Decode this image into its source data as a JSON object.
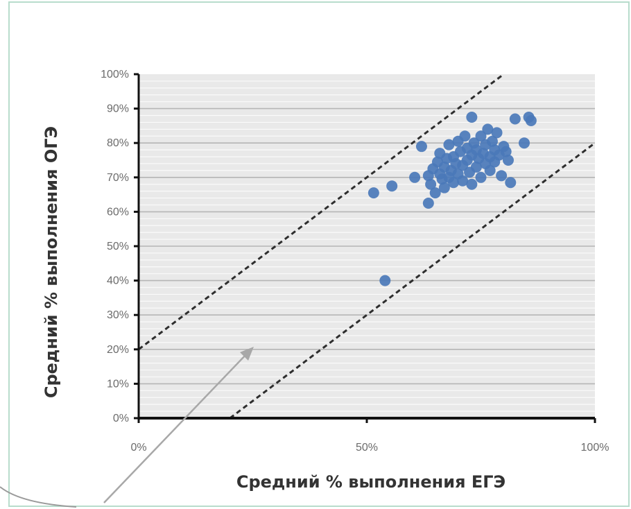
{
  "chart_data": {
    "type": "scatter",
    "title": "",
    "xlabel": "Средний % выполнения ЕГЭ",
    "ylabel": "Средний % выполнения ОГЭ",
    "xlim": [
      0,
      100
    ],
    "ylim": [
      0,
      100
    ],
    "x_ticks": [
      "0%",
      "50%",
      "100%"
    ],
    "y_ticks": [
      "0%",
      "10%",
      "20%",
      "30%",
      "40%",
      "50%",
      "60%",
      "70%",
      "80%",
      "90%",
      "100%"
    ],
    "grid": "horizontal",
    "legend": "none",
    "series": [
      {
        "color": "#4a78b8",
        "points": [
          [
            51.5,
            65.5
          ],
          [
            55.5,
            67.5
          ],
          [
            60.5,
            70
          ],
          [
            62,
            79
          ],
          [
            63.5,
            62.5
          ],
          [
            63.5,
            70.5
          ],
          [
            64,
            68
          ],
          [
            64.5,
            72.5
          ],
          [
            65,
            65.5
          ],
          [
            65.5,
            74.5
          ],
          [
            66,
            71
          ],
          [
            66,
            77
          ],
          [
            66.5,
            69.5
          ],
          [
            67,
            73
          ],
          [
            67,
            67
          ],
          [
            67.5,
            75.5
          ],
          [
            68,
            70
          ],
          [
            68,
            79.5
          ],
          [
            68.5,
            72
          ],
          [
            69,
            76
          ],
          [
            69,
            68.5
          ],
          [
            69.5,
            74
          ],
          [
            70,
            80.5
          ],
          [
            70,
            71
          ],
          [
            70.5,
            77.5
          ],
          [
            71,
            73.5
          ],
          [
            71,
            69
          ],
          [
            71.5,
            82
          ],
          [
            72,
            75
          ],
          [
            72,
            78.5
          ],
          [
            72.5,
            71.5
          ],
          [
            73,
            87.5
          ],
          [
            73,
            76.5
          ],
          [
            73,
            68
          ],
          [
            73.5,
            80
          ],
          [
            74,
            73
          ],
          [
            74,
            78
          ],
          [
            74.5,
            75.5
          ],
          [
            75,
            82
          ],
          [
            75,
            70
          ],
          [
            75.5,
            77
          ],
          [
            76,
            74
          ],
          [
            76,
            79.5
          ],
          [
            76.5,
            84
          ],
          [
            77,
            76
          ],
          [
            77,
            72
          ],
          [
            77.5,
            80.5
          ],
          [
            78,
            78
          ],
          [
            78,
            74.5
          ],
          [
            78.5,
            83
          ],
          [
            79,
            76.5
          ],
          [
            79.5,
            70.5
          ],
          [
            80,
            79
          ],
          [
            80.5,
            77.5
          ],
          [
            81,
            75
          ],
          [
            81.5,
            68.5
          ],
          [
            82.5,
            87
          ],
          [
            84.5,
            80
          ],
          [
            85.5,
            87.5
          ],
          [
            86,
            86.5
          ],
          [
            54,
            40
          ]
        ]
      }
    ],
    "reference_lines": [
      {
        "style": "dashed",
        "x": [
          0,
          80
        ],
        "y": [
          20,
          100
        ]
      },
      {
        "style": "dashed",
        "x": [
          20,
          100
        ],
        "y": [
          0,
          80
        ]
      }
    ]
  }
}
